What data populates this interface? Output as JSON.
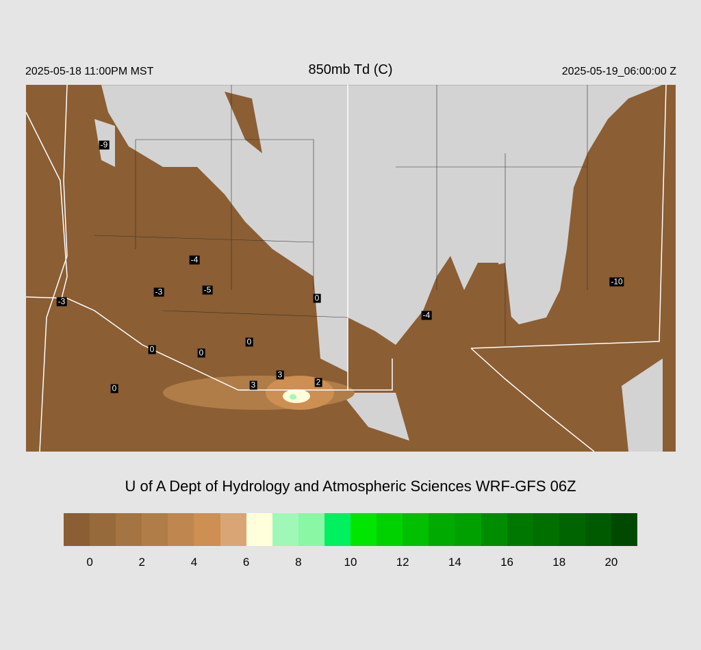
{
  "header": {
    "local_time": "2025-05-18 11:00PM MST",
    "title": "850mb Td (C)",
    "valid_time": "2025-05-19_06:00:00 Z"
  },
  "credit": "U of A Dept of Hydrology and Atmospheric Sciences WRF-GFS 06Z",
  "map": {
    "background_color": "#d3d3d3",
    "land_dry_color": "#8b5e34",
    "station_labels": [
      "-9",
      "-4",
      "-3",
      "-5",
      "-3",
      "0",
      "-4",
      "-10",
      "0",
      "0",
      "0",
      "3",
      "3",
      "2",
      "0"
    ]
  },
  "colorbar": {
    "colors": [
      "#8b5e34",
      "#976a3b",
      "#a47442",
      "#b07d48",
      "#bf8650",
      "#cd8f52",
      "#d9a575",
      "#ffffdc",
      "#a0f8b8",
      "#8af7a4",
      "#00f060",
      "#00e600",
      "#00d200",
      "#00c000",
      "#00aa00",
      "#00a000",
      "#008c00",
      "#007800",
      "#006f00",
      "#006400",
      "#005a00",
      "#004a00"
    ],
    "tick_labels": [
      "0",
      "2",
      "4",
      "6",
      "8",
      "10",
      "12",
      "14",
      "16",
      "18",
      "20"
    ]
  }
}
